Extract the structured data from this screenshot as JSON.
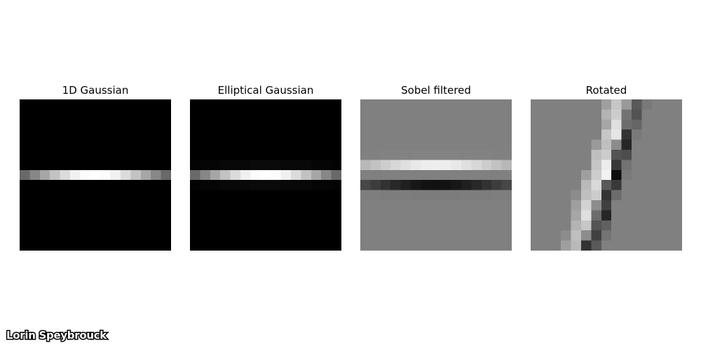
{
  "chart_data": [
    {
      "type": "heatmap",
      "title": "1D Gaussian",
      "colormap": "gray",
      "vmin": 0,
      "vmax": 1,
      "values": [
        [
          0,
          0,
          0,
          0,
          0,
          0,
          0,
          0,
          0,
          0,
          0,
          0,
          0,
          0,
          0
        ],
        [
          0,
          0,
          0,
          0,
          0,
          0,
          0,
          0,
          0,
          0,
          0,
          0,
          0,
          0,
          0
        ],
        [
          0,
          0,
          0,
          0,
          0,
          0,
          0,
          0,
          0,
          0,
          0,
          0,
          0,
          0,
          0
        ],
        [
          0,
          0,
          0,
          0,
          0,
          0,
          0,
          0,
          0,
          0,
          0,
          0,
          0,
          0,
          0
        ],
        [
          0,
          0,
          0,
          0,
          0,
          0,
          0,
          0,
          0,
          0,
          0,
          0,
          0,
          0,
          0
        ],
        [
          0,
          0,
          0,
          0,
          0,
          0,
          0,
          0,
          0,
          0,
          0,
          0,
          0,
          0,
          0
        ],
        [
          0,
          0,
          0,
          0,
          0,
          0,
          0,
          0,
          0,
          0,
          0,
          0,
          0,
          0,
          0
        ],
        [
          0.41,
          0.53,
          0.65,
          0.76,
          0.86,
          0.94,
          0.99,
          1,
          0.99,
          0.94,
          0.86,
          0.76,
          0.65,
          0.53,
          0.41
        ],
        [
          0,
          0,
          0,
          0,
          0,
          0,
          0,
          0,
          0,
          0,
          0,
          0,
          0,
          0,
          0
        ],
        [
          0,
          0,
          0,
          0,
          0,
          0,
          0,
          0,
          0,
          0,
          0,
          0,
          0,
          0,
          0
        ],
        [
          0,
          0,
          0,
          0,
          0,
          0,
          0,
          0,
          0,
          0,
          0,
          0,
          0,
          0,
          0
        ],
        [
          0,
          0,
          0,
          0,
          0,
          0,
          0,
          0,
          0,
          0,
          0,
          0,
          0,
          0,
          0
        ],
        [
          0,
          0,
          0,
          0,
          0,
          0,
          0,
          0,
          0,
          0,
          0,
          0,
          0,
          0,
          0
        ],
        [
          0,
          0,
          0,
          0,
          0,
          0,
          0,
          0,
          0,
          0,
          0,
          0,
          0,
          0,
          0
        ],
        [
          0,
          0,
          0,
          0,
          0,
          0,
          0,
          0,
          0,
          0,
          0,
          0,
          0,
          0,
          0
        ]
      ]
    },
    {
      "type": "heatmap",
      "title": "Elliptical Gaussian",
      "colormap": "gray",
      "vmin": 0,
      "vmax": 1,
      "values": [
        [
          0,
          0,
          0,
          0,
          0,
          0,
          0,
          0,
          0,
          0,
          0,
          0,
          0,
          0,
          0
        ],
        [
          0,
          0,
          0,
          0,
          0,
          0,
          0,
          0,
          0,
          0,
          0,
          0,
          0,
          0,
          0
        ],
        [
          0,
          0,
          0,
          0,
          0,
          0,
          0,
          0,
          0,
          0,
          0,
          0,
          0,
          0,
          0
        ],
        [
          0,
          0,
          0,
          0,
          0,
          0,
          0,
          0,
          0,
          0,
          0,
          0,
          0,
          0,
          0
        ],
        [
          0,
          0,
          0,
          0,
          0,
          0,
          0,
          0,
          0,
          0,
          0,
          0,
          0,
          0,
          0
        ],
        [
          0,
          0,
          0,
          0,
          0,
          0,
          0,
          0,
          0,
          0,
          0,
          0,
          0,
          0,
          0
        ],
        [
          0.01,
          0.02,
          0.02,
          0.03,
          0.03,
          0.03,
          0.04,
          0.04,
          0.04,
          0.03,
          0.03,
          0.03,
          0.02,
          0.02,
          0.01
        ],
        [
          0.41,
          0.53,
          0.65,
          0.76,
          0.86,
          0.94,
          0.99,
          1,
          0.99,
          0.94,
          0.86,
          0.76,
          0.65,
          0.53,
          0.41
        ],
        [
          0.01,
          0.02,
          0.02,
          0.03,
          0.03,
          0.03,
          0.04,
          0.04,
          0.04,
          0.03,
          0.03,
          0.03,
          0.02,
          0.02,
          0.01
        ],
        [
          0,
          0,
          0,
          0,
          0,
          0,
          0,
          0,
          0,
          0,
          0,
          0,
          0,
          0,
          0
        ],
        [
          0,
          0,
          0,
          0,
          0,
          0,
          0,
          0,
          0,
          0,
          0,
          0,
          0,
          0,
          0
        ],
        [
          0,
          0,
          0,
          0,
          0,
          0,
          0,
          0,
          0,
          0,
          0,
          0,
          0,
          0,
          0
        ],
        [
          0,
          0,
          0,
          0,
          0,
          0,
          0,
          0,
          0,
          0,
          0,
          0,
          0,
          0,
          0
        ],
        [
          0,
          0,
          0,
          0,
          0,
          0,
          0,
          0,
          0,
          0,
          0,
          0,
          0,
          0,
          0
        ],
        [
          0,
          0,
          0,
          0,
          0,
          0,
          0,
          0,
          0,
          0,
          0,
          0,
          0,
          0,
          0
        ]
      ]
    },
    {
      "type": "heatmap",
      "title": "Sobel filtered",
      "colormap": "gray",
      "vmin": -1,
      "vmax": 1,
      "values": [
        [
          0,
          0,
          0,
          0,
          0,
          0,
          0,
          0,
          0,
          0,
          0,
          0,
          0,
          0,
          0
        ],
        [
          0,
          0,
          0,
          0,
          0,
          0,
          0,
          0,
          0,
          0,
          0,
          0,
          0,
          0,
          0
        ],
        [
          0,
          0,
          0,
          0,
          0,
          0,
          0,
          0,
          0,
          0,
          0,
          0,
          0,
          0,
          0
        ],
        [
          0,
          0,
          0,
          0,
          0,
          0,
          0,
          0,
          0,
          0,
          0,
          0,
          0,
          0,
          0
        ],
        [
          0,
          0,
          0,
          0,
          0,
          0,
          0,
          0,
          0,
          0,
          0,
          0,
          0,
          0,
          0
        ],
        [
          0.01,
          0.01,
          0.02,
          0.02,
          0.02,
          0.03,
          0.03,
          0.03,
          0.03,
          0.03,
          0.02,
          0.02,
          0.02,
          0.01,
          0.01
        ],
        [
          0.44,
          0.52,
          0.61,
          0.69,
          0.76,
          0.82,
          0.86,
          0.87,
          0.86,
          0.82,
          0.76,
          0.69,
          0.61,
          0.52,
          0.44
        ],
        [
          0,
          0,
          0,
          0,
          0,
          0,
          0,
          0,
          0,
          0,
          0,
          0,
          0,
          0,
          0
        ],
        [
          -0.44,
          -0.52,
          -0.61,
          -0.69,
          -0.76,
          -0.82,
          -0.86,
          -0.87,
          -0.86,
          -0.82,
          -0.76,
          -0.69,
          -0.61,
          -0.52,
          -0.44
        ],
        [
          -0.01,
          -0.01,
          -0.02,
          -0.02,
          -0.02,
          -0.03,
          -0.03,
          -0.03,
          -0.03,
          -0.03,
          -0.02,
          -0.02,
          -0.02,
          -0.01,
          -0.01
        ],
        [
          0,
          0,
          0,
          0,
          0,
          0,
          0,
          0,
          0,
          0,
          0,
          0,
          0,
          0,
          0
        ],
        [
          0,
          0,
          0,
          0,
          0,
          0,
          0,
          0,
          0,
          0,
          0,
          0,
          0,
          0,
          0
        ],
        [
          0,
          0,
          0,
          0,
          0,
          0,
          0,
          0,
          0,
          0,
          0,
          0,
          0,
          0,
          0
        ],
        [
          0,
          0,
          0,
          0,
          0,
          0,
          0,
          0,
          0,
          0,
          0,
          0,
          0,
          0,
          0
        ],
        [
          0,
          0,
          0,
          0,
          0,
          0,
          0,
          0,
          0,
          0,
          0,
          0,
          0,
          0,
          0
        ]
      ]
    },
    {
      "type": "heatmap",
      "title": "Rotated",
      "colormap": "gray",
      "vmin": -1,
      "vmax": 1,
      "values": [
        [
          0,
          0,
          0,
          0,
          0,
          0,
          0,
          0.25,
          0.55,
          0.2,
          -0.3,
          -0.05,
          0,
          0,
          0
        ],
        [
          0,
          0,
          0,
          0,
          0,
          0,
          0,
          0.4,
          0.6,
          -0.1,
          -0.35,
          0,
          0,
          0,
          0
        ],
        [
          0,
          0,
          0,
          0,
          0,
          0,
          0,
          0.3,
          0.75,
          -0.15,
          -0.2,
          0,
          0,
          0,
          0
        ],
        [
          0,
          0,
          0,
          0,
          0,
          0,
          0,
          0.55,
          0.8,
          -0.6,
          -0.05,
          0,
          0,
          0,
          0
        ],
        [
          0,
          0,
          0,
          0,
          0,
          0,
          0.2,
          0.5,
          0.1,
          -0.7,
          0,
          0,
          0,
          0,
          0
        ],
        [
          0,
          0,
          0,
          0,
          0,
          0,
          0.5,
          0.6,
          -0.35,
          -0.4,
          0,
          0,
          0,
          0,
          0
        ],
        [
          0,
          0,
          0,
          0,
          0,
          0,
          0.55,
          0.85,
          -0.55,
          -0.1,
          0,
          0,
          0,
          0,
          0
        ],
        [
          0,
          0,
          0,
          0,
          0,
          0.25,
          0.6,
          0.9,
          -0.9,
          -0.05,
          0,
          0,
          0,
          0,
          0
        ],
        [
          0,
          0,
          0,
          0,
          0,
          0.45,
          0.7,
          -0.3,
          -0.55,
          0,
          0,
          0,
          0,
          0,
          0
        ],
        [
          0,
          0,
          0,
          0,
          0.1,
          0.5,
          0.6,
          -0.6,
          -0.15,
          0,
          0,
          0,
          0,
          0,
          0
        ],
        [
          0,
          0,
          0,
          0,
          0.25,
          0.65,
          0.1,
          -0.5,
          0,
          0,
          0,
          0,
          0,
          0,
          0
        ],
        [
          0,
          0,
          0,
          0,
          0.3,
          0.75,
          -0.15,
          -0.7,
          0,
          0,
          0,
          0,
          0,
          0,
          0
        ],
        [
          0,
          0,
          0,
          0,
          0.4,
          0.55,
          -0.35,
          -0.25,
          0,
          0,
          0,
          0,
          0,
          0,
          0
        ],
        [
          0,
          0,
          0,
          0.1,
          0.5,
          0.1,
          -0.5,
          -0.1,
          0,
          0,
          0,
          0,
          0,
          0,
          0
        ],
        [
          0,
          0,
          0,
          0.25,
          0.45,
          -0.6,
          -0.3,
          0,
          0,
          0,
          0,
          0,
          0,
          0,
          0
        ]
      ]
    }
  ],
  "watermark": "Lorin Speybrouck"
}
